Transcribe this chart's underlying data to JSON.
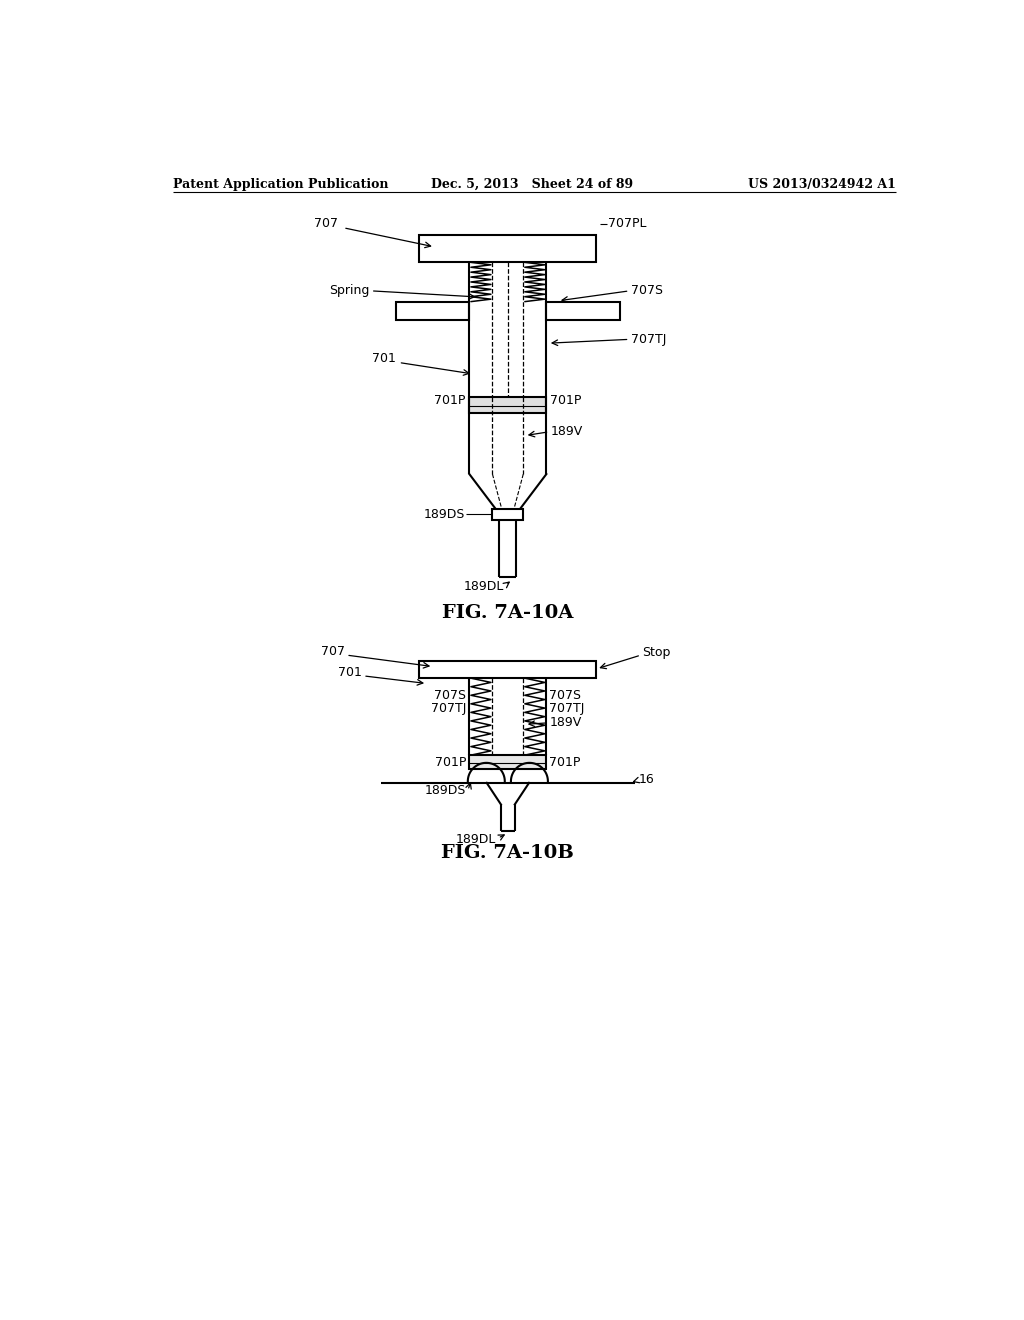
{
  "bg_color": "#ffffff",
  "header_left": "Patent Application Publication",
  "header_center": "Dec. 5, 2013   Sheet 24 of 89",
  "header_right": "US 2013/0324942 A1",
  "fig_label_A": "FIG. 7A-10A",
  "fig_label_B": "FIG. 7A-10B",
  "line_color": "#000000",
  "lw": 1.5,
  "tlw": 0.9
}
